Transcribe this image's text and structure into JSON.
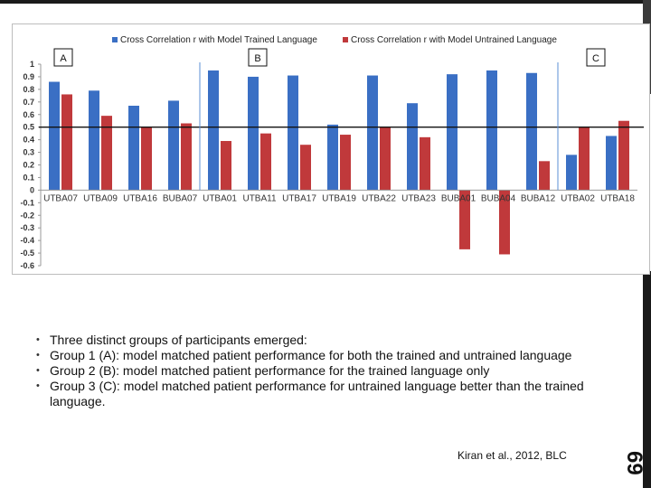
{
  "chart_data": {
    "type": "bar",
    "categories": [
      "UTBA07",
      "UTBA09",
      "UTBA16",
      "BUBA07",
      "UTBA01",
      "UTBA11",
      "UTBA17",
      "UTBA19",
      "UTBA22",
      "UTBA23",
      "BUBA01",
      "BUBA04",
      "BUBA12",
      "UTBA02",
      "UTBA18"
    ],
    "series": [
      {
        "name": "Cross Correlation r with Model Trained Language",
        "color": "#3a6fc4",
        "values": [
          0.86,
          0.79,
          0.67,
          0.71,
          0.95,
          0.9,
          0.91,
          0.52,
          0.91,
          0.69,
          0.92,
          0.95,
          0.93,
          0.28,
          0.43
        ]
      },
      {
        "name": "Cross Correlation r with Model Untrained Language",
        "color": "#c0393b",
        "values": [
          0.76,
          0.59,
          0.5,
          0.53,
          0.39,
          0.45,
          0.36,
          0.44,
          0.5,
          0.42,
          -0.47,
          -0.51,
          0.23,
          0.5,
          0.55
        ]
      }
    ],
    "ylim": [
      -0.6,
      1
    ],
    "yticks": [
      "1",
      "0.9",
      "0.8",
      "0.7",
      "0.6",
      "0.5",
      "0.4",
      "0.3",
      "0.2",
      "0.1",
      "0",
      "-0.1",
      "-0.2",
      "-0.3",
      "-0.4",
      "-0.5",
      "-0.6"
    ],
    "reference_line": 0.5,
    "group_dividers_after": [
      3,
      12
    ],
    "group_labels": [
      "A",
      "B",
      "C"
    ],
    "legend_position": "top"
  },
  "bullets": [
    "Three distinct groups of participants emerged:",
    "Group 1 (A): model matched patient performance for both the trained and untrained language",
    "Group 2 (B): model matched patient performance for the trained language only",
    "Group 3 (C): model matched patient performance for untrained language better than the trained language."
  ],
  "citation": "Kiran et al., 2012, BLC",
  "slide_number": "69"
}
